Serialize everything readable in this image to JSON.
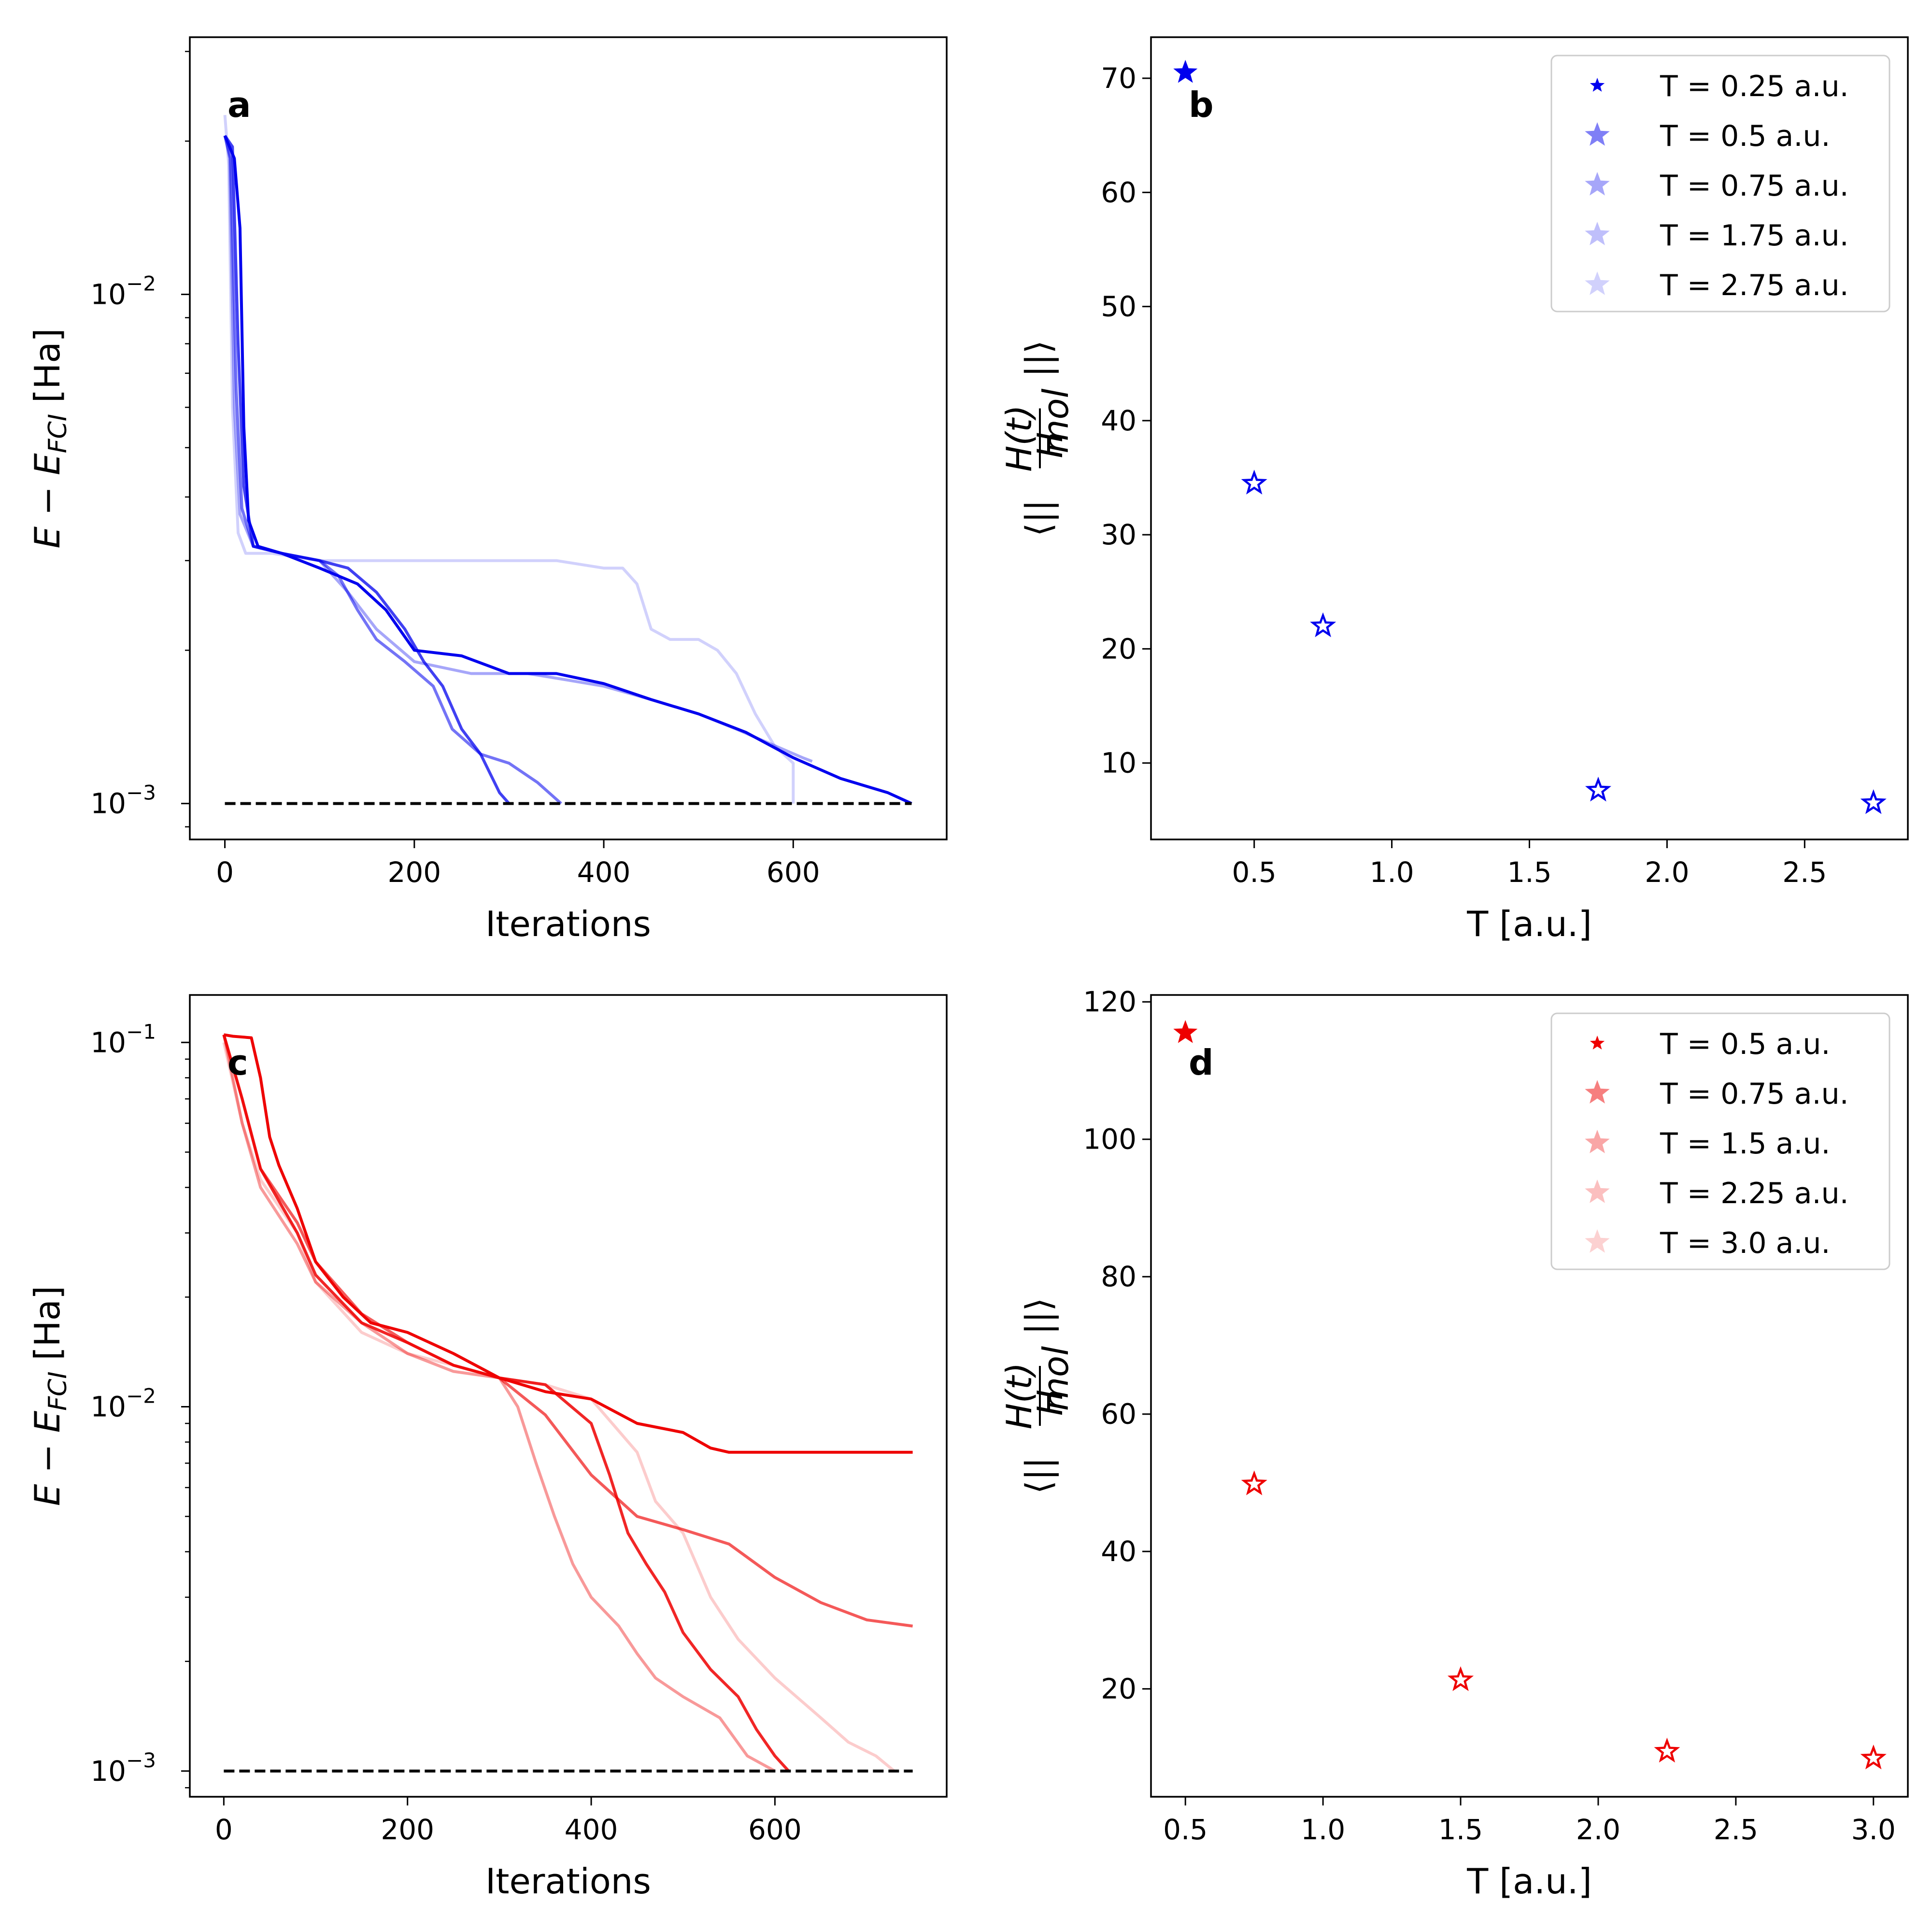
{
  "chart_data": [
    {
      "panel": "a",
      "type": "line",
      "xlabel": "Iterations",
      "ylabel": "E − E_FCI [Ha]",
      "yscale": "log",
      "xlim": [
        -37,
        762
      ],
      "ylim": [
        0.00085,
        0.032
      ],
      "xticks": [
        0,
        200,
        400,
        600
      ],
      "color": "#0000ee",
      "reference_line": {
        "y": 0.001,
        "x": [
          0,
          725
        ],
        "style": "dashed"
      },
      "series": [
        {
          "name": "T = 0.25 a.u.",
          "opacity": 1.0,
          "points": [
            [
              0,
              0.0205
            ],
            [
              10,
              0.0185
            ],
            [
              16,
              0.0135
            ],
            [
              20,
              0.0055
            ],
            [
              25,
              0.0036
            ],
            [
              35,
              0.0032
            ],
            [
              60,
              0.0031
            ],
            [
              100,
              0.0029
            ],
            [
              140,
              0.0027
            ],
            [
              170,
              0.0024
            ],
            [
              200,
              0.002
            ],
            [
              250,
              0.00195
            ],
            [
              300,
              0.0018
            ],
            [
              350,
              0.0018
            ],
            [
              400,
              0.00172
            ],
            [
              450,
              0.0016
            ],
            [
              500,
              0.0015
            ],
            [
              550,
              0.00138
            ],
            [
              600,
              0.00123
            ],
            [
              650,
              0.00112
            ],
            [
              700,
              0.00105
            ],
            [
              725,
              0.001
            ]
          ]
        },
        {
          "name": "T = 0.5 a.u.",
          "opacity": 0.75,
          "points": [
            [
              0,
              0.0205
            ],
            [
              8,
              0.0195
            ],
            [
              14,
              0.008
            ],
            [
              20,
              0.0042
            ],
            [
              30,
              0.0032
            ],
            [
              60,
              0.0031
            ],
            [
              100,
              0.003
            ],
            [
              130,
              0.0029
            ],
            [
              160,
              0.0026
            ],
            [
              190,
              0.0022
            ],
            [
              210,
              0.0019
            ],
            [
              230,
              0.0017
            ],
            [
              250,
              0.0014
            ],
            [
              270,
              0.00125
            ],
            [
              290,
              0.00105
            ],
            [
              300,
              0.001
            ]
          ]
        },
        {
          "name": "T = 0.75 a.u.",
          "opacity": 0.55,
          "points": [
            [
              0,
              0.0205
            ],
            [
              6,
              0.0185
            ],
            [
              12,
              0.0065
            ],
            [
              18,
              0.0038
            ],
            [
              30,
              0.0032
            ],
            [
              60,
              0.0031
            ],
            [
              100,
              0.003
            ],
            [
              120,
              0.0028
            ],
            [
              140,
              0.0024
            ],
            [
              160,
              0.0021
            ],
            [
              190,
              0.0019
            ],
            [
              220,
              0.0017
            ],
            [
              240,
              0.0014
            ],
            [
              270,
              0.00125
            ],
            [
              300,
              0.0012
            ],
            [
              330,
              0.0011
            ],
            [
              355,
              0.001
            ]
          ]
        },
        {
          "name": "T = 1.75 a.u.",
          "opacity": 0.35,
          "points": [
            [
              0,
              0.0205
            ],
            [
              5,
              0.0185
            ],
            [
              10,
              0.006
            ],
            [
              16,
              0.0037
            ],
            [
              30,
              0.0032
            ],
            [
              60,
              0.0031
            ],
            [
              100,
              0.003
            ],
            [
              130,
              0.0026
            ],
            [
              160,
              0.0022
            ],
            [
              200,
              0.0019
            ],
            [
              260,
              0.0018
            ],
            [
              320,
              0.0018
            ],
            [
              360,
              0.00175
            ],
            [
              400,
              0.0017
            ],
            [
              450,
              0.0016
            ],
            [
              500,
              0.0015
            ],
            [
              540,
              0.0014
            ],
            [
              580,
              0.0013
            ],
            [
              610,
              0.00123
            ],
            [
              620,
              0.00121
            ]
          ]
        },
        {
          "name": "T = 2.75 a.u.",
          "opacity": 0.18,
          "points": [
            [
              0,
              0.0225
            ],
            [
              4,
              0.018
            ],
            [
              8,
              0.006
            ],
            [
              14,
              0.0034
            ],
            [
              22,
              0.0031
            ],
            [
              50,
              0.0031
            ],
            [
              100,
              0.003
            ],
            [
              200,
              0.003
            ],
            [
              300,
              0.003
            ],
            [
              350,
              0.003
            ],
            [
              400,
              0.0029
            ],
            [
              420,
              0.0029
            ],
            [
              435,
              0.0027
            ],
            [
              450,
              0.0022
            ],
            [
              470,
              0.0021
            ],
            [
              500,
              0.0021
            ],
            [
              520,
              0.002
            ],
            [
              540,
              0.0018
            ],
            [
              560,
              0.0015
            ],
            [
              580,
              0.0013
            ],
            [
              600,
              0.0012
            ],
            [
              600,
              0.001
            ]
          ]
        }
      ]
    },
    {
      "panel": "b",
      "type": "scatter",
      "xlabel": "T [a.u.]",
      "ylabel": "⟨||H(t)/H_mol||⟩",
      "xlim": [
        0.125,
        2.875
      ],
      "ylim": [
        3.3,
        73.6
      ],
      "xticks": [
        "0.5",
        "1.0",
        "1.5",
        "2.0",
        "2.5"
      ],
      "yticks": [
        "10",
        "20",
        "30",
        "40",
        "50",
        "60",
        "70"
      ],
      "color": "#0000ee",
      "x": [
        0.25,
        0.5,
        0.75,
        1.75,
        2.75
      ],
      "y": [
        70.5,
        34.5,
        22.0,
        7.6,
        6.5
      ],
      "legend": [
        "T = 0.25 a.u.",
        "T = 0.5 a.u.",
        "T = 0.75 a.u.",
        "T = 1.75 a.u.",
        "T = 2.75 a.u."
      ],
      "legend_opacity": [
        1.0,
        0.5,
        0.35,
        0.25,
        0.18
      ],
      "legend_location": "upper right"
    },
    {
      "panel": "c",
      "type": "line",
      "xlabel": "Iterations",
      "ylabel": "E − E_FCI [Ha]",
      "yscale": "log",
      "xlim": [
        -37,
        787
      ],
      "ylim": [
        0.00085,
        0.135
      ],
      "xticks": [
        0,
        200,
        400,
        600
      ],
      "color": "#ee0000",
      "reference_line": {
        "y": 0.001,
        "x": [
          0,
          750
        ],
        "style": "dashed"
      },
      "series": [
        {
          "name": "T = 0.5 a.u.",
          "opacity": 1.0,
          "points": [
            [
              0,
              0.105
            ],
            [
              10,
              0.104
            ],
            [
              30,
              0.103
            ],
            [
              40,
              0.08
            ],
            [
              50,
              0.055
            ],
            [
              60,
              0.046
            ],
            [
              80,
              0.035
            ],
            [
              100,
              0.025
            ],
            [
              130,
              0.02
            ],
            [
              160,
              0.017
            ],
            [
              200,
              0.016
            ],
            [
              250,
              0.014
            ],
            [
              300,
              0.012
            ],
            [
              350,
              0.011
            ],
            [
              400,
              0.0105
            ],
            [
              450,
              0.009
            ],
            [
              500,
              0.0085
            ],
            [
              530,
              0.0077
            ],
            [
              550,
              0.0075
            ],
            [
              600,
              0.0075
            ],
            [
              700,
              0.0075
            ],
            [
              750,
              0.0075
            ]
          ]
        },
        {
          "name": "T = 0.75 a.u.",
          "opacity": 0.65,
          "points": [
            [
              0,
              0.105
            ],
            [
              20,
              0.07
            ],
            [
              40,
              0.045
            ],
            [
              80,
              0.032
            ],
            [
              100,
              0.025
            ],
            [
              150,
              0.018
            ],
            [
              200,
              0.015
            ],
            [
              250,
              0.013
            ],
            [
              300,
              0.012
            ],
            [
              350,
              0.0095
            ],
            [
              400,
              0.0065
            ],
            [
              450,
              0.005
            ],
            [
              500,
              0.0046
            ],
            [
              550,
              0.0042
            ],
            [
              600,
              0.0034
            ],
            [
              650,
              0.0029
            ],
            [
              700,
              0.0026
            ],
            [
              750,
              0.0025
            ]
          ]
        },
        {
          "name": "T = 1.5 a.u.",
          "opacity": 0.4,
          "points": [
            [
              0,
              0.105
            ],
            [
              20,
              0.06
            ],
            [
              40,
              0.04
            ],
            [
              80,
              0.028
            ],
            [
              100,
              0.022
            ],
            [
              150,
              0.017
            ],
            [
              200,
              0.014
            ],
            [
              250,
              0.0125
            ],
            [
              300,
              0.012
            ],
            [
              320,
              0.01
            ],
            [
              340,
              0.007
            ],
            [
              360,
              0.005
            ],
            [
              380,
              0.0037
            ],
            [
              400,
              0.003
            ],
            [
              430,
              0.0025
            ],
            [
              450,
              0.0021
            ],
            [
              470,
              0.0018
            ],
            [
              500,
              0.0016
            ],
            [
              540,
              0.0014
            ],
            [
              570,
              0.0011
            ],
            [
              600,
              0.001
            ]
          ]
        },
        {
          "name": "T = 2.25 a.u.",
          "opacity": 0.85,
          "points": [
            [
              0,
              0.105
            ],
            [
              20,
              0.07
            ],
            [
              40,
              0.045
            ],
            [
              80,
              0.03
            ],
            [
              100,
              0.023
            ],
            [
              150,
              0.017
            ],
            [
              200,
              0.015
            ],
            [
              250,
              0.013
            ],
            [
              300,
              0.012
            ],
            [
              350,
              0.0115
            ],
            [
              400,
              0.009
            ],
            [
              420,
              0.0065
            ],
            [
              440,
              0.0045
            ],
            [
              460,
              0.0037
            ],
            [
              480,
              0.0031
            ],
            [
              500,
              0.0024
            ],
            [
              530,
              0.0019
            ],
            [
              560,
              0.0016
            ],
            [
              580,
              0.0013
            ],
            [
              600,
              0.0011
            ],
            [
              615,
              0.001
            ]
          ]
        },
        {
          "name": "T = 3.0 a.u.",
          "opacity": 0.2,
          "points": [
            [
              0,
              0.1
            ],
            [
              20,
              0.06
            ],
            [
              40,
              0.042
            ],
            [
              80,
              0.03
            ],
            [
              100,
              0.022
            ],
            [
              150,
              0.016
            ],
            [
              200,
              0.014
            ],
            [
              250,
              0.013
            ],
            [
              300,
              0.012
            ],
            [
              350,
              0.0115
            ],
            [
              400,
              0.0105
            ],
            [
              450,
              0.0075
            ],
            [
              470,
              0.0055
            ],
            [
              500,
              0.0045
            ],
            [
              530,
              0.003
            ],
            [
              560,
              0.0023
            ],
            [
              600,
              0.0018
            ],
            [
              650,
              0.0014
            ],
            [
              680,
              0.0012
            ],
            [
              710,
              0.0011
            ],
            [
              730,
              0.001
            ]
          ]
        }
      ]
    },
    {
      "panel": "d",
      "type": "scatter",
      "xlabel": "T [a.u.]",
      "ylabel": "⟨||H(t)/H_mol||⟩",
      "xlim": [
        0.375,
        3.125
      ],
      "ylim": [
        4.3,
        121.0
      ],
      "xticks": [
        "0.5",
        "1.0",
        "1.5",
        "2.0",
        "2.5",
        "3.0"
      ],
      "yticks": [
        "20",
        "40",
        "60",
        "80",
        "100",
        "120"
      ],
      "color": "#ee0000",
      "x": [
        0.5,
        0.75,
        1.5,
        2.25,
        3.0
      ],
      "y": [
        115.5,
        49.8,
        21.3,
        10.9,
        9.9
      ],
      "legend": [
        "T = 0.5 a.u.",
        "T = 0.75 a.u.",
        "T = 1.5 a.u.",
        "T = 2.25 a.u.",
        "T = 3.0 a.u."
      ],
      "legend_opacity": [
        1.0,
        0.5,
        0.35,
        0.25,
        0.18
      ],
      "legend_location": "upper right"
    }
  ]
}
